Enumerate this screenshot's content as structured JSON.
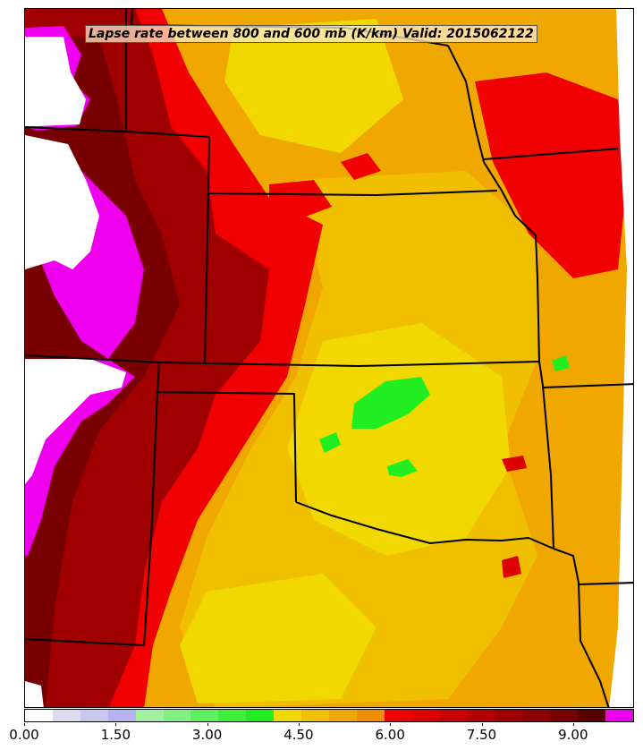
{
  "title": "Lapse rate between 800 and 600 mb (K/km) Valid: 2015062122",
  "colorbar": {
    "colors": [
      "#ffffff",
      "#dcdcf0",
      "#c8c8f0",
      "#b4b4f0",
      "#a0f0a0",
      "#80f080",
      "#5ef05e",
      "#3cf03c",
      "#20ee20",
      "#f0d800",
      "#f0c000",
      "#f0a800",
      "#f08c00",
      "#f00000",
      "#dc0000",
      "#c80000",
      "#b40000",
      "#a00000",
      "#8c0000",
      "#780000",
      "#580000",
      "#ee00ee"
    ],
    "min": 0.0,
    "max": 10.0,
    "ticks": [
      {
        "value": 0.0,
        "label": "0.00"
      },
      {
        "value": 1.5,
        "label": "1.50"
      },
      {
        "value": 3.0,
        "label": "3.00"
      },
      {
        "value": 4.5,
        "label": "4.50"
      },
      {
        "value": 6.0,
        "label": "6.00"
      },
      {
        "value": 7.5,
        "label": "7.50"
      },
      {
        "value": 9.0,
        "label": "9.00"
      }
    ]
  }
}
